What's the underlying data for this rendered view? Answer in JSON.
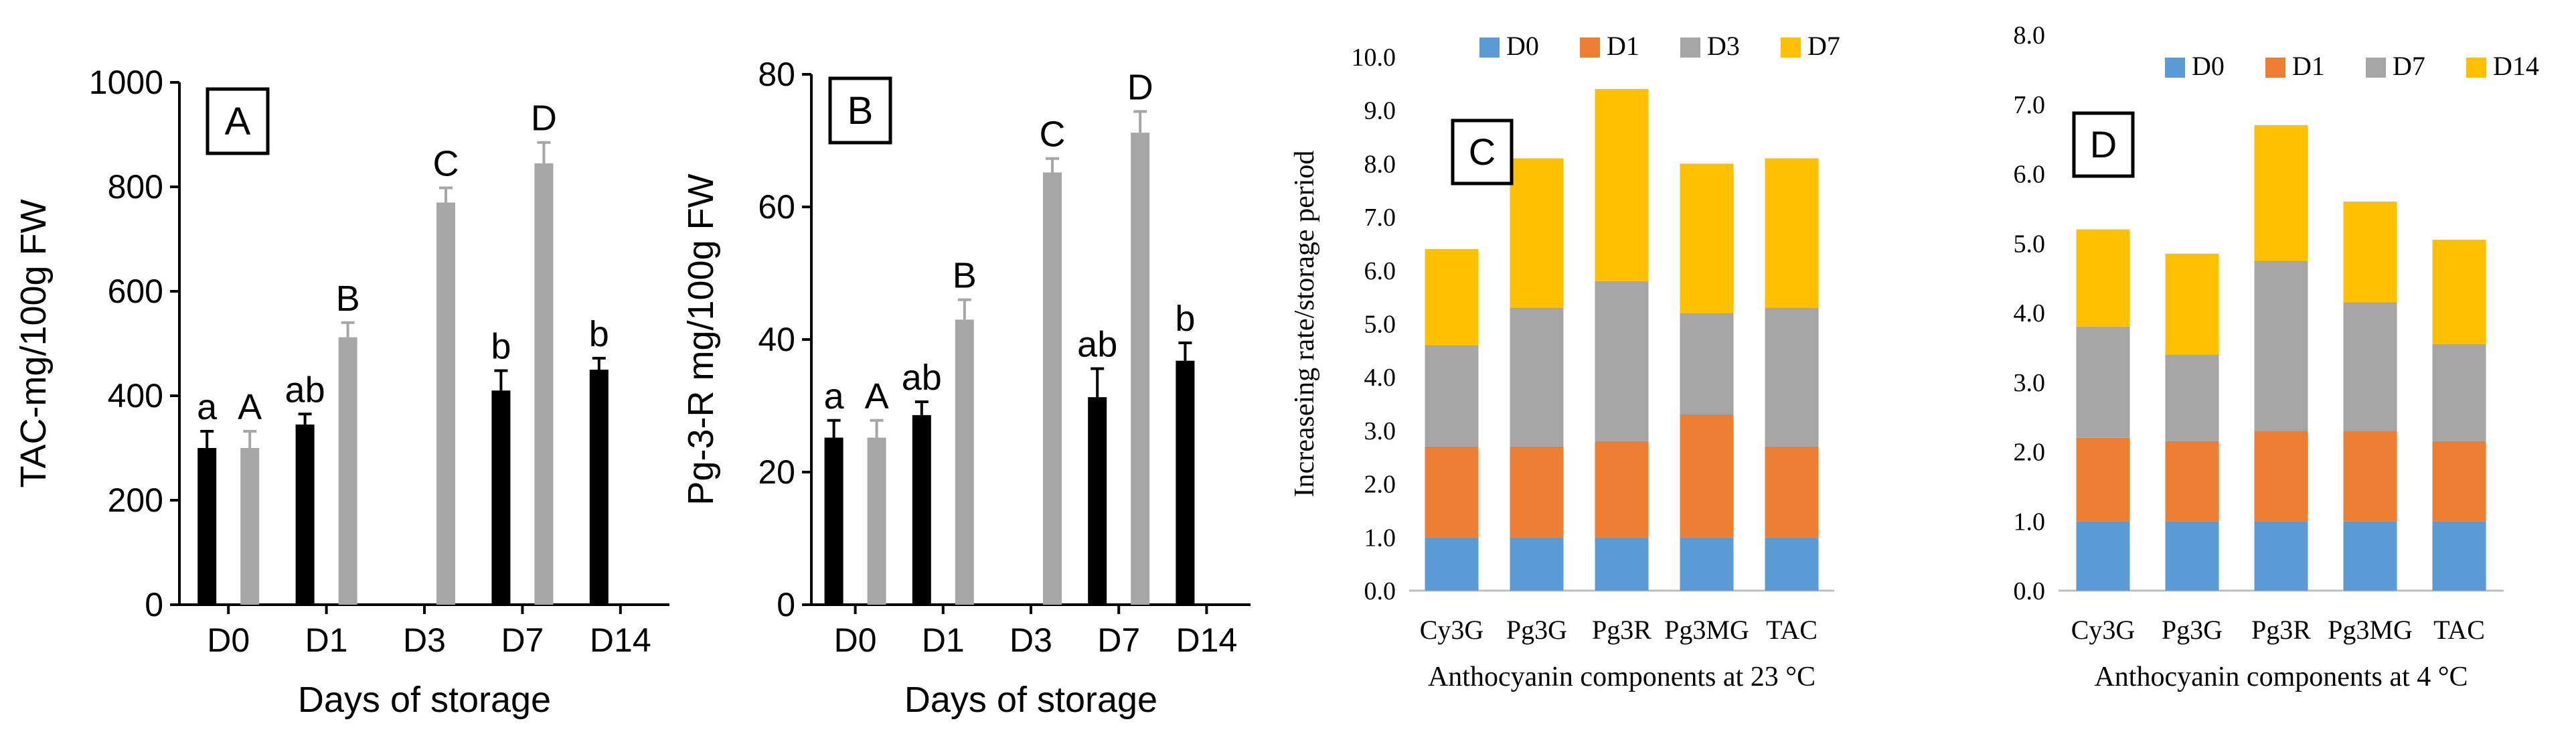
{
  "colors": {
    "black_bar": "#000000",
    "gray_bar": "#a6a6a6",
    "D0": "#5b9bd5",
    "D1": "#ed7d31",
    "D3": "#a5a5a5",
    "D7": "#a5a5a5",
    "D7_yellow": "#ffc000",
    "D14": "#ffc000"
  },
  "chart_data": [
    {
      "id": "A",
      "type": "bar",
      "panel_label": "A",
      "title": "",
      "xlabel": "Days of storage",
      "ylabel": "TAC-mg/100g FW",
      "categories": [
        "D0",
        "D1",
        "D3",
        "D7",
        "D14"
      ],
      "ylim": [
        0,
        1000
      ],
      "yticks": [
        "0",
        "200",
        "400",
        "600",
        "800",
        "1000"
      ],
      "series": [
        {
          "name": "black",
          "values": [
            300,
            345,
            null,
            410,
            450
          ],
          "errors": [
            32,
            20,
            null,
            38,
            22
          ],
          "letters": [
            "a",
            "ab",
            "",
            "b",
            "b"
          ]
        },
        {
          "name": "gray",
          "values": [
            300,
            512,
            770,
            845,
            null
          ],
          "errors": [
            32,
            28,
            28,
            40,
            null
          ],
          "letters": [
            "A",
            "B",
            "C",
            "D",
            ""
          ]
        }
      ]
    },
    {
      "id": "B",
      "type": "bar",
      "panel_label": "B",
      "title": "",
      "xlabel": "Days of storage",
      "ylabel": "Pg-3-R mg/100g FW",
      "categories": [
        "D0",
        "D1",
        "D3",
        "D7",
        "D14"
      ],
      "ylim": [
        0,
        80
      ],
      "yticks": [
        "0",
        "20",
        "40",
        "60",
        "80"
      ],
      "series": [
        {
          "name": "black",
          "values": [
            25.2,
            28.6,
            null,
            31.3,
            36.8
          ],
          "errors": [
            2.6,
            2.0,
            null,
            4.3,
            2.7
          ],
          "letters": [
            "a",
            "ab",
            "",
            "ab",
            "b"
          ]
        },
        {
          "name": "gray",
          "values": [
            25.2,
            43.0,
            65.2,
            71.2,
            null
          ],
          "errors": [
            2.6,
            3.0,
            2.1,
            3.2,
            null
          ],
          "letters": [
            "A",
            "B",
            "C",
            "D",
            ""
          ]
        }
      ]
    },
    {
      "id": "C",
      "type": "stacked-bar",
      "panel_label": "C",
      "xlabel": "Anthocyanin components at 23 °C",
      "ylabel": "Increaseing rate/storage period",
      "categories": [
        "Cy3G",
        "Pg3G",
        "Pg3R",
        "Pg3MG",
        "TAC"
      ],
      "ylim": [
        0,
        10
      ],
      "yticks": [
        "0.0",
        "1.0",
        "2.0",
        "3.0",
        "4.0",
        "5.0",
        "6.0",
        "7.0",
        "8.0",
        "9.0",
        "10.0"
      ],
      "legend": [
        "D0",
        "D1",
        "D3",
        "D7"
      ],
      "legend_position": "top",
      "series": [
        {
          "name": "D0",
          "color_key": "D0",
          "values": [
            1.0,
            1.0,
            1.0,
            1.0,
            1.0
          ]
        },
        {
          "name": "D1",
          "color_key": "D1",
          "values": [
            1.7,
            1.7,
            1.8,
            2.3,
            1.7
          ]
        },
        {
          "name": "D3",
          "color_key": "D3",
          "values": [
            1.9,
            2.6,
            3.0,
            1.9,
            2.6
          ]
        },
        {
          "name": "D7",
          "color_key": "D7_yellow",
          "values": [
            1.8,
            2.8,
            3.6,
            2.8,
            2.8
          ]
        }
      ]
    },
    {
      "id": "D",
      "type": "stacked-bar",
      "panel_label": "D",
      "xlabel": "Anthocyanin components at 4 °C",
      "ylabel": "",
      "categories": [
        "Cy3G",
        "Pg3G",
        "Pg3R",
        "Pg3MG",
        "TAC"
      ],
      "ylim": [
        0,
        8
      ],
      "yticks": [
        "0.0",
        "1.0",
        "2.0",
        "3.0",
        "4.0",
        "5.0",
        "6.0",
        "7.0",
        "8.0"
      ],
      "legend": [
        "D0",
        "D1",
        "D7",
        "D14"
      ],
      "legend_position": "top",
      "series": [
        {
          "name": "D0",
          "color_key": "D0",
          "values": [
            1.0,
            1.0,
            1.0,
            1.0,
            1.0
          ]
        },
        {
          "name": "D1",
          "color_key": "D1",
          "values": [
            1.2,
            1.15,
            1.3,
            1.3,
            1.15
          ]
        },
        {
          "name": "D7",
          "color_key": "D7",
          "values": [
            1.6,
            1.25,
            2.45,
            1.85,
            1.4
          ]
        },
        {
          "name": "D14",
          "color_key": "D14",
          "values": [
            1.4,
            1.45,
            1.95,
            1.45,
            1.5
          ]
        }
      ]
    }
  ]
}
